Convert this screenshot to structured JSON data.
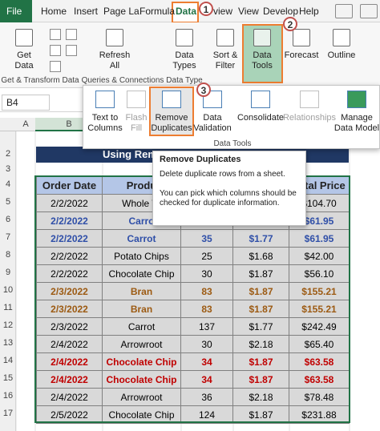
{
  "tabs": [
    "File",
    "Home",
    "Insert",
    "Page La",
    "Formula",
    "Data",
    "view",
    "View",
    "Develop",
    "Help"
  ],
  "callouts": [
    "1",
    "2",
    "3"
  ],
  "ribbon": {
    "buttons": [
      {
        "lines": [
          "Get",
          "Data"
        ]
      },
      {
        "lines": [
          "Refresh",
          "All"
        ]
      },
      {
        "lines": [
          "Data",
          "Types"
        ]
      },
      {
        "lines": [
          "Sort &",
          "Filter"
        ]
      },
      {
        "lines": [
          "Data",
          "Tools"
        ]
      },
      {
        "lines": [
          "Forecast"
        ]
      },
      {
        "lines": [
          "Outline"
        ]
      }
    ],
    "groups": [
      "Get & Transform Data",
      "Queries & Connections",
      "Data Type"
    ]
  },
  "name_box": "B4",
  "panel": {
    "buttons": [
      {
        "lines": [
          "Text to",
          "Columns"
        ]
      },
      {
        "lines": [
          "Flash",
          "Fill"
        ]
      },
      {
        "lines": [
          "Remove",
          "Duplicates"
        ]
      },
      {
        "lines": [
          "Data",
          "Validation"
        ]
      },
      {
        "lines": [
          "Consolidate"
        ]
      },
      {
        "lines": [
          "Relationships"
        ]
      },
      {
        "lines": [
          "Manage",
          "Data Model"
        ]
      }
    ],
    "label": "Data Tools"
  },
  "tooltip": {
    "title": "Remove Duplicates",
    "lines": [
      "Delete duplicate rows from a sheet.",
      "You can pick which columns should be checked for duplicate information."
    ]
  },
  "sheet": {
    "columns": [
      "A",
      "B"
    ],
    "rows": [
      "2",
      "3",
      "4",
      "5",
      "6",
      "7",
      "8",
      "9",
      "10",
      "11",
      "12",
      "13",
      "14",
      "15",
      "16",
      "17"
    ],
    "title": "Using Rem",
    "table": {
      "header": [
        "Order Date",
        "Produ",
        null,
        null,
        "Total Price"
      ],
      "rows": [
        {
          "cells": [
            "2/2/2022",
            "Whole W",
            null,
            null,
            "$104.70"
          ],
          "color": "#000000"
        },
        {
          "cells": [
            "2/2/2022",
            "Carro",
            null,
            null,
            "$61.95"
          ],
          "color": "#2f4fa8"
        },
        {
          "cells": [
            "2/2/2022",
            "Carrot",
            "35",
            "$1.77",
            "$61.95"
          ],
          "color": "#2f4fa8"
        },
        {
          "cells": [
            "2/2/2022",
            "Potato Chips",
            "25",
            "$1.68",
            "$42.00"
          ],
          "color": "#000000"
        },
        {
          "cells": [
            "2/2/2022",
            "Chocolate Chip",
            "30",
            "$1.87",
            "$56.10"
          ],
          "color": "#000000"
        },
        {
          "cells": [
            "2/3/2022",
            "Bran",
            "83",
            "$1.87",
            "$155.21"
          ],
          "color": "#9c5a12"
        },
        {
          "cells": [
            "2/3/2022",
            "Bran",
            "83",
            "$1.87",
            "$155.21"
          ],
          "color": "#9c5a12"
        },
        {
          "cells": [
            "2/3/2022",
            "Carrot",
            "137",
            "$1.77",
            "$242.49"
          ],
          "color": "#000000"
        },
        {
          "cells": [
            "2/4/2022",
            "Arrowroot",
            "30",
            "$2.18",
            "$65.40"
          ],
          "color": "#000000"
        },
        {
          "cells": [
            "2/4/2022",
            "Chocolate Chip",
            "34",
            "$1.87",
            "$63.58"
          ],
          "color": "#c00000"
        },
        {
          "cells": [
            "2/4/2022",
            "Chocolate Chip",
            "34",
            "$1.87",
            "$63.58"
          ],
          "color": "#c00000"
        },
        {
          "cells": [
            "2/4/2022",
            "Arrowroot",
            "36",
            "$2.18",
            "$78.48"
          ],
          "color": "#000000"
        },
        {
          "cells": [
            "2/5/2022",
            "Chocolate Chip",
            "124",
            "$1.87",
            "$231.88"
          ],
          "color": "#000000"
        }
      ]
    }
  }
}
